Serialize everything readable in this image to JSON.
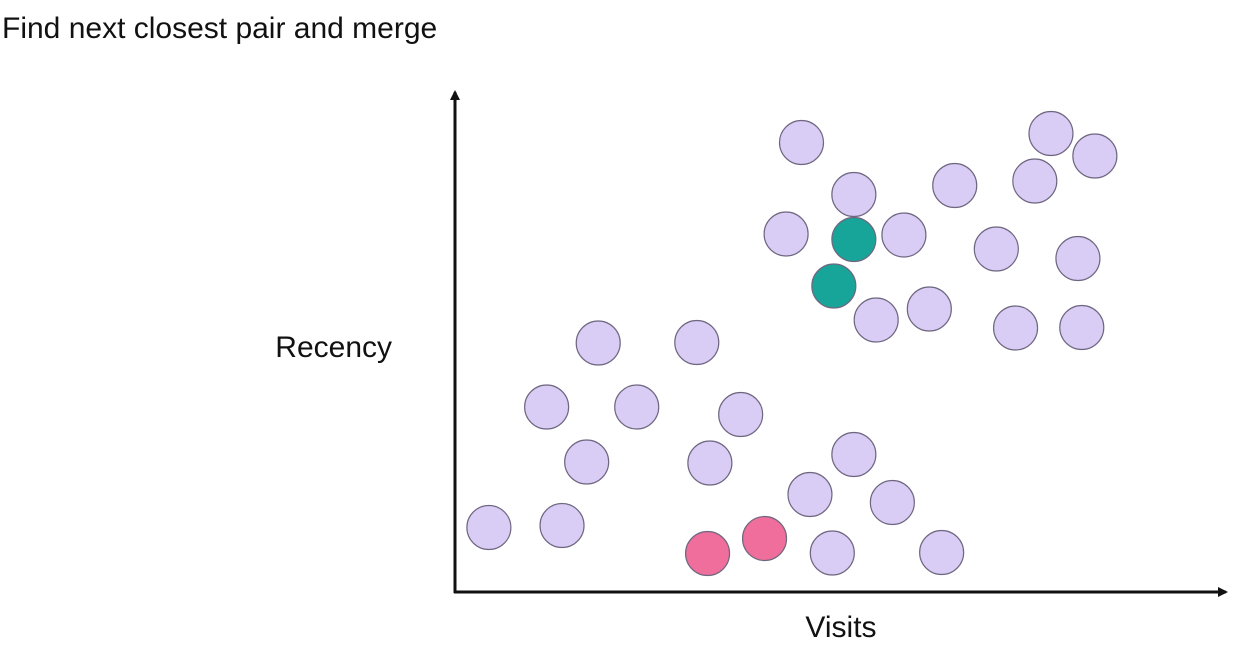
{
  "title": "Find next closest pair and merge",
  "chart_data": {
    "type": "scatter",
    "title": "Find next closest pair and merge",
    "xlabel": "Visits",
    "ylabel": "Recency",
    "xlim": [
      0,
      100
    ],
    "ylim": [
      0,
      100
    ],
    "grid": false,
    "colors": {
      "default_fill": "#d9ccf5",
      "default_stroke": "#6f6780",
      "teal": "#17a59a",
      "pink": "#ef6e9b",
      "axis": "#111111"
    },
    "points": [
      {
        "x": 45.0,
        "y": 89.9,
        "color": "default"
      },
      {
        "x": 51.8,
        "y": 79.5,
        "color": "default"
      },
      {
        "x": 43.0,
        "y": 71.6,
        "color": "default"
      },
      {
        "x": 58.3,
        "y": 71.4,
        "color": "default"
      },
      {
        "x": 64.9,
        "y": 81.3,
        "color": "default"
      },
      {
        "x": 77.4,
        "y": 91.7,
        "color": "default"
      },
      {
        "x": 75.3,
        "y": 82.2,
        "color": "default"
      },
      {
        "x": 83.1,
        "y": 87.2,
        "color": "default"
      },
      {
        "x": 70.3,
        "y": 68.6,
        "color": "default"
      },
      {
        "x": 80.9,
        "y": 66.7,
        "color": "default"
      },
      {
        "x": 61.6,
        "y": 56.6,
        "color": "default"
      },
      {
        "x": 54.7,
        "y": 54.4,
        "color": "default"
      },
      {
        "x": 72.8,
        "y": 52.8,
        "color": "default"
      },
      {
        "x": 81.4,
        "y": 52.9,
        "color": "default"
      },
      {
        "x": 51.8,
        "y": 70.5,
        "color": "teal"
      },
      {
        "x": 49.2,
        "y": 61.2,
        "color": "teal"
      },
      {
        "x": 18.6,
        "y": 49.8,
        "color": "default"
      },
      {
        "x": 31.4,
        "y": 49.9,
        "color": "default"
      },
      {
        "x": 11.9,
        "y": 37.0,
        "color": "default"
      },
      {
        "x": 23.6,
        "y": 37.0,
        "color": "default"
      },
      {
        "x": 37.1,
        "y": 35.5,
        "color": "default"
      },
      {
        "x": 17.1,
        "y": 26.0,
        "color": "default"
      },
      {
        "x": 33.1,
        "y": 25.8,
        "color": "default"
      },
      {
        "x": 51.8,
        "y": 27.5,
        "color": "default"
      },
      {
        "x": 46.1,
        "y": 19.5,
        "color": "default"
      },
      {
        "x": 56.8,
        "y": 17.9,
        "color": "default"
      },
      {
        "x": 4.4,
        "y": 12.9,
        "color": "default"
      },
      {
        "x": 13.9,
        "y": 13.3,
        "color": "default"
      },
      {
        "x": 32.8,
        "y": 7.7,
        "color": "pink"
      },
      {
        "x": 40.2,
        "y": 10.7,
        "color": "pink"
      },
      {
        "x": 49.0,
        "y": 7.8,
        "color": "default"
      },
      {
        "x": 63.2,
        "y": 7.9,
        "color": "default"
      }
    ]
  }
}
